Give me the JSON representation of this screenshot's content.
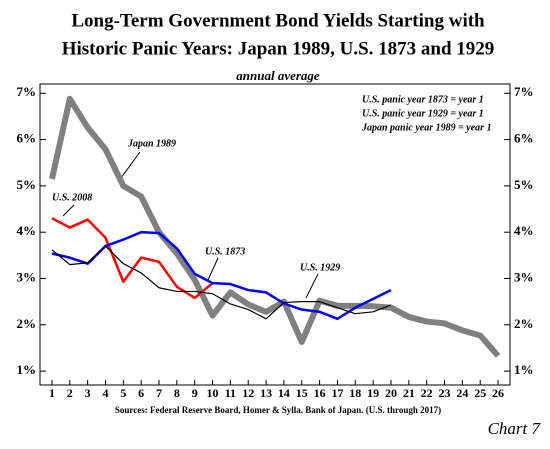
{
  "chart_data": {
    "type": "line",
    "title": [
      "Long-Term Government Bond Yields Starting with",
      "Historic Panic Years:  Japan 1989, U.S. 1873  and 1929"
    ],
    "subtitle": "annual average",
    "notes": [
      "U.S. panic year 1873 = year 1",
      "U.S. panic year 1929 = year 1",
      "Japan panic year 1989 = year 1"
    ],
    "source": "Sources: Federal Reserve Board, Homer & Sylla. Bank of Japan. (U.S. through 2017)",
    "chart_label": "Chart 7",
    "x": [
      1,
      2,
      3,
      4,
      5,
      6,
      7,
      8,
      9,
      10,
      11,
      12,
      13,
      14,
      15,
      16,
      17,
      18,
      19,
      20,
      21,
      22,
      23,
      24,
      25,
      26
    ],
    "xlim": [
      0.33,
      26.67
    ],
    "xticks": [
      1,
      2,
      3,
      4,
      5,
      6,
      7,
      8,
      9,
      10,
      11,
      12,
      13,
      14,
      15,
      16,
      17,
      18,
      19,
      20,
      21,
      22,
      23,
      24,
      25,
      26
    ],
    "ylim": [
      0.7,
      7.2
    ],
    "yticks": [
      {
        "value": 1,
        "label": "1%"
      },
      {
        "value": 2,
        "label": "2%"
      },
      {
        "value": 3,
        "label": "3%"
      },
      {
        "value": 4,
        "label": "4%"
      },
      {
        "value": 5,
        "label": "5%"
      },
      {
        "value": 6,
        "label": "6%"
      },
      {
        "value": 7,
        "label": "7%"
      }
    ],
    "series": [
      {
        "name": "Japan 1989",
        "color": "#808080",
        "values": [
          5.15,
          6.88,
          6.26,
          5.79,
          5.0,
          4.77,
          4.0,
          3.54,
          2.97,
          2.2,
          2.7,
          2.44,
          2.28,
          2.5,
          1.63,
          2.52,
          2.41,
          2.41,
          2.4,
          2.37,
          2.17,
          2.07,
          2.03,
          1.88,
          1.77,
          1.33
        ]
      },
      {
        "name": "U.S. 2008",
        "color": "#ff0000",
        "values": [
          4.3,
          4.1,
          4.27,
          3.88,
          2.93,
          3.45,
          3.36,
          2.82,
          2.58,
          2.9,
          null,
          null,
          null,
          null,
          null,
          null,
          null,
          null,
          null,
          null,
          null,
          null,
          null,
          null,
          null,
          null
        ]
      },
      {
        "name": "U.S. 1873",
        "color": "#0000ff",
        "values": [
          3.54,
          3.45,
          3.32,
          3.7,
          3.84,
          4.0,
          3.98,
          3.65,
          3.1,
          2.9,
          2.88,
          2.75,
          2.7,
          2.46,
          2.33,
          2.28,
          2.13,
          2.37,
          2.56,
          2.75,
          null,
          null,
          null,
          null,
          null,
          null
        ]
      },
      {
        "name": "U.S. 1929",
        "color": "#000000",
        "values": [
          3.62,
          3.3,
          3.34,
          3.7,
          3.32,
          3.12,
          2.8,
          2.72,
          2.72,
          2.67,
          2.45,
          2.33,
          2.13,
          2.48,
          2.5,
          2.5,
          2.37,
          2.24,
          2.28,
          2.43,
          null,
          null,
          null,
          null,
          null,
          null
        ]
      }
    ]
  }
}
